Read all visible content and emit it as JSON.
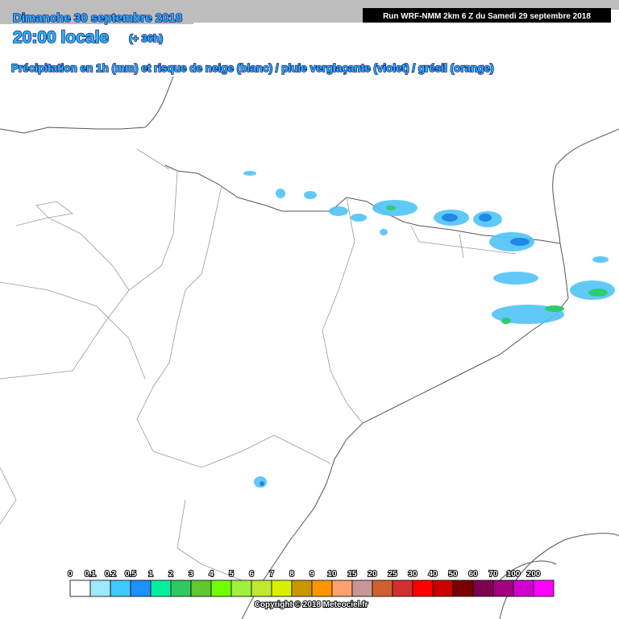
{
  "header": {
    "date": "Dimanche 30 septembre 2018",
    "time": "20:00 locale",
    "lead": "(+ 36h)",
    "description": "Précipitation en 1h (mm) et risque de neige (blanc) / pluie verglaçante (violet) / grésil (orange)",
    "run": "Run WRF-NMM 2km 6 Z du Samedi 29 septembre 2018"
  },
  "legend": {
    "labels": [
      "0",
      "0.1",
      "0.2",
      "0.5",
      "1",
      "2",
      "3",
      "4",
      "5",
      "6",
      "7",
      "8",
      "9",
      "10",
      "15",
      "20",
      "25",
      "30",
      "40",
      "50",
      "60",
      "70",
      "100",
      "200"
    ],
    "colors": [
      "#ffffff",
      "#a0e8ff",
      "#40c8ff",
      "#1e90ff",
      "#00f0a0",
      "#30c860",
      "#60c830",
      "#70ff00",
      "#a0f040",
      "#c0e830",
      "#d8f000",
      "#c89600",
      "#ff9600",
      "#ffa070",
      "#c89696",
      "#d06030",
      "#d03030",
      "#ff0000",
      "#c80000",
      "#780000",
      "#800050",
      "#a00080",
      "#d000d0",
      "#ff00ff"
    ]
  },
  "footer": {
    "copyright": "Copyright © 2018 Meteociel.fr"
  }
}
